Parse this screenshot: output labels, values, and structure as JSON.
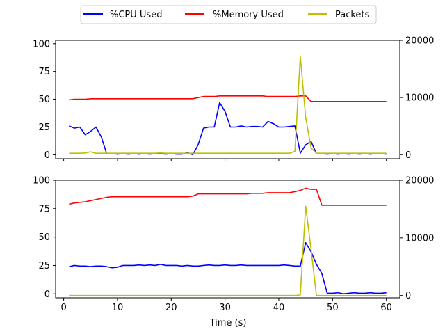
{
  "chart_data": {
    "type": "line",
    "legend": {
      "placement": "top-center",
      "entries": [
        {
          "label": "%CPU Used",
          "color": "#0000ff"
        },
        {
          "label": "%Memory Used",
          "color": "#ff0000"
        },
        {
          "label": "Packets",
          "color": "#bfbf00"
        }
      ]
    },
    "xlabel": "Time (s)",
    "xlim": [
      -1.5,
      62.5
    ],
    "xticks": [
      0,
      10,
      20,
      30,
      40,
      50,
      60
    ],
    "grid": false,
    "panels": [
      {
        "name": "top",
        "ylim_left": [
          -3.5,
          103
        ],
        "yticks_left": [
          0,
          25,
          50,
          75,
          100
        ],
        "ylim_right": [
          -700,
          20000
        ],
        "yticks_right": [
          0,
          10000,
          20000
        ],
        "show_x_tick_labels": false,
        "series": [
          {
            "name": "%CPU Used",
            "axis": "left",
            "color": "#0000ff",
            "x": [
              1,
              2,
              3,
              4,
              5,
              6,
              7,
              8,
              9,
              10,
              11,
              12,
              13,
              14,
              15,
              16,
              17,
              18,
              19,
              20,
              21,
              22,
              23,
              24,
              25,
              26,
              27,
              28,
              29,
              30,
              31,
              32,
              33,
              34,
              35,
              36,
              37,
              38,
              39,
              40,
              41,
              42,
              43,
              44,
              45,
              46,
              47,
              48,
              49,
              50,
              51,
              52,
              53,
              54,
              55,
              56,
              57,
              58,
              59,
              60
            ],
            "y": [
              26,
              24,
              25,
              18,
              21,
              25,
              16,
              1,
              1,
              0.5,
              1,
              0.5,
              1,
              0.5,
              1,
              0.5,
              1,
              1,
              0.5,
              1,
              0.5,
              0.5,
              2,
              0,
              9,
              24,
              25,
              25,
              47,
              39,
              25,
              25,
              26,
              25,
              25.5,
              25.5,
              25,
              30,
              28,
              25,
              25,
              25.5,
              26,
              1.5,
              9,
              12,
              1,
              1,
              0.5,
              1,
              0.5,
              1,
              0.5,
              1,
              0.5,
              1,
              0.5,
              1,
              1,
              0.5
            ]
          },
          {
            "name": "%Memory Used",
            "axis": "left",
            "color": "#ff0000",
            "x": [
              1,
              2,
              3,
              4,
              5,
              6,
              7,
              8,
              9,
              10,
              11,
              12,
              13,
              14,
              15,
              16,
              17,
              18,
              19,
              20,
              21,
              22,
              23,
              24,
              25,
              26,
              27,
              28,
              29,
              30,
              31,
              32,
              33,
              34,
              35,
              36,
              37,
              38,
              39,
              40,
              41,
              42,
              43,
              44,
              45,
              46,
              47,
              48,
              49,
              50,
              51,
              52,
              53,
              54,
              55,
              56,
              57,
              58,
              59,
              60
            ],
            "y": [
              49.5,
              50,
              50,
              50,
              50.5,
              50.5,
              50.5,
              50.5,
              50.5,
              50.5,
              50.5,
              50.5,
              50.5,
              50.5,
              50.5,
              50.5,
              50.5,
              50.5,
              50.5,
              50.5,
              50.5,
              50.5,
              50.5,
              50.5,
              51.5,
              52.5,
              52.5,
              52.5,
              53,
              53,
              53,
              53,
              53,
              53,
              53,
              53,
              53,
              52.5,
              52.5,
              52.5,
              52.5,
              52.5,
              52.5,
              53,
              53,
              48,
              48,
              48,
              48,
              48,
              48,
              48,
              48,
              48,
              48,
              48,
              48,
              48,
              48,
              48
            ]
          },
          {
            "name": "Packets",
            "axis": "right",
            "color": "#bfbf00",
            "x": [
              1,
              2,
              3,
              4,
              5,
              6,
              7,
              8,
              9,
              10,
              11,
              12,
              13,
              14,
              15,
              16,
              17,
              18,
              19,
              20,
              21,
              22,
              23,
              24,
              25,
              26,
              27,
              28,
              29,
              30,
              31,
              32,
              33,
              34,
              35,
              36,
              37,
              38,
              39,
              40,
              41,
              42,
              43,
              44,
              45,
              46,
              47,
              48,
              49,
              50,
              51,
              52,
              53,
              54,
              55,
              56,
              57,
              58,
              59,
              60
            ],
            "y": [
              250,
              250,
              250,
              300,
              500,
              250,
              250,
              250,
              250,
              250,
              250,
              250,
              250,
              250,
              250,
              250,
              250,
              300,
              250,
              250,
              250,
              250,
              250,
              250,
              250,
              250,
              250,
              250,
              250,
              250,
              250,
              250,
              250,
              250,
              250,
              250,
              250,
              250,
              250,
              250,
              250,
              250,
              600,
              17200,
              6500,
              1200,
              250,
              250,
              250,
              250,
              250,
              250,
              250,
              250,
              250,
              250,
              250,
              250,
              250,
              250
            ]
          }
        ]
      },
      {
        "name": "bottom",
        "ylim_left": [
          -3.5,
          100
        ],
        "yticks_left": [
          0,
          25,
          50,
          75,
          100
        ],
        "ylim_right": [
          -400,
          20000
        ],
        "yticks_right": [
          0,
          10000,
          20000
        ],
        "show_x_tick_labels": true,
        "series": [
          {
            "name": "%CPU Used",
            "axis": "left",
            "color": "#0000ff",
            "x": [
              1,
              2,
              3,
              4,
              5,
              6,
              7,
              8,
              9,
              10,
              11,
              12,
              13,
              14,
              15,
              16,
              17,
              18,
              19,
              20,
              21,
              22,
              23,
              24,
              25,
              26,
              27,
              28,
              29,
              30,
              31,
              32,
              33,
              34,
              35,
              36,
              37,
              38,
              39,
              40,
              41,
              42,
              43,
              44,
              45,
              46,
              47,
              48,
              49,
              50,
              51,
              52,
              53,
              54,
              55,
              56,
              57,
              58,
              59,
              60
            ],
            "y": [
              24,
              25,
              24.5,
              24.5,
              24,
              24.5,
              24.5,
              24,
              23,
              23.5,
              25,
              25,
              25,
              25.5,
              25,
              25.5,
              25,
              26,
              25,
              25,
              25,
              24.5,
              25,
              24.5,
              24.5,
              25,
              25.5,
              25,
              25,
              25.5,
              25,
              25,
              25.5,
              25,
              25,
              25,
              25,
              25,
              25,
              25,
              25.5,
              25,
              24.5,
              24.5,
              45,
              37,
              26,
              18,
              0.5,
              0.5,
              1,
              0,
              0.5,
              1,
              0.5,
              0.5,
              1,
              0.5,
              0.5,
              1
            ]
          },
          {
            "name": "%Memory Used",
            "axis": "left",
            "color": "#ff0000",
            "x": [
              1,
              2,
              3,
              4,
              5,
              6,
              7,
              8,
              9,
              10,
              11,
              12,
              13,
              14,
              15,
              16,
              17,
              18,
              19,
              20,
              21,
              22,
              23,
              24,
              25,
              26,
              27,
              28,
              29,
              30,
              31,
              32,
              33,
              34,
              35,
              36,
              37,
              38,
              39,
              40,
              41,
              42,
              43,
              44,
              45,
              46,
              47,
              48,
              49,
              50,
              51,
              52,
              53,
              54,
              55,
              56,
              57,
              58,
              59,
              60
            ],
            "y": [
              79,
              80,
              80.5,
              81,
              82,
              83,
              84,
              85,
              85.5,
              85.5,
              85.5,
              85.5,
              85.5,
              85.5,
              85.5,
              85.5,
              85.5,
              85.5,
              85.5,
              85.5,
              85.5,
              85.5,
              85.5,
              86,
              88,
              88,
              88,
              88,
              88,
              88,
              88,
              88,
              88,
              88,
              88.5,
              88.5,
              88.5,
              89,
              89,
              89,
              89,
              89,
              90,
              91,
              93,
              92,
              92,
              78,
              78,
              78,
              78,
              78,
              78,
              78,
              78,
              78,
              78,
              78,
              78,
              78
            ]
          },
          {
            "name": "Packets",
            "axis": "right",
            "color": "#bfbf00",
            "x": [
              1,
              2,
              3,
              4,
              5,
              6,
              7,
              8,
              9,
              10,
              11,
              12,
              13,
              14,
              15,
              16,
              17,
              18,
              19,
              20,
              21,
              22,
              23,
              24,
              25,
              26,
              27,
              28,
              29,
              30,
              31,
              32,
              33,
              34,
              35,
              36,
              37,
              38,
              39,
              40,
              41,
              42,
              43,
              44,
              45,
              46,
              47,
              48,
              49,
              50,
              51,
              52,
              53,
              54,
              55,
              56,
              57,
              58,
              59,
              60
            ],
            "y": [
              0,
              0,
              0,
              0,
              0,
              0,
              0,
              0,
              0,
              0,
              0,
              0,
              0,
              0,
              0,
              0,
              0,
              0,
              0,
              0,
              0,
              0,
              0,
              0,
              0,
              0,
              0,
              0,
              0,
              0,
              0,
              0,
              0,
              0,
              0,
              0,
              0,
              0,
              0,
              0,
              0,
              0,
              0,
              100,
              15500,
              8000,
              0,
              0,
              0,
              0,
              0,
              0,
              0,
              0,
              0,
              0,
              0,
              0,
              0,
              0
            ]
          }
        ]
      }
    ]
  }
}
